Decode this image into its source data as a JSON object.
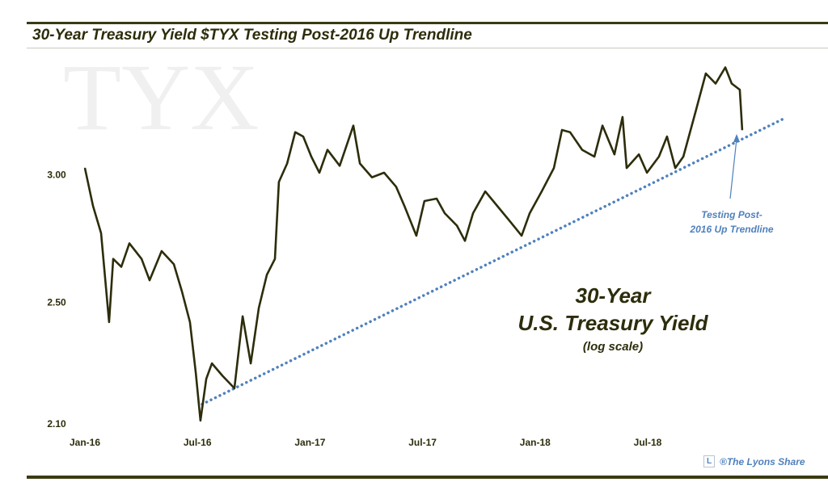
{
  "title": "30-Year Treasury Yield $TYX Testing Post-2016 Up Trendline",
  "watermark": "TYX",
  "credit": "®The Lyons Share",
  "logo_letter": "L",
  "colors": {
    "line": "#2d2d0c",
    "trend": "#4f81bd",
    "rule": "#3b3b14"
  },
  "chart_data": {
    "type": "line",
    "title": "30-Year Treasury Yield $TYX Testing Post-2016 Up Trendline",
    "xlabel": "",
    "ylabel": "",
    "yscale": "log",
    "ylim": [
      2.1,
      3.55
    ],
    "x_unit": "months since Jan-2016",
    "xlim": [
      0,
      37.5
    ],
    "x_ticks": [
      {
        "m": 0,
        "label": "Jan-16"
      },
      {
        "m": 6,
        "label": "Jul-16"
      },
      {
        "m": 12,
        "label": "Jan-17"
      },
      {
        "m": 18,
        "label": "Jul-17"
      },
      {
        "m": 24,
        "label": "Jan-18"
      },
      {
        "m": 30,
        "label": "Jul-18"
      }
    ],
    "y_ticks": [
      {
        "v": 2.1,
        "label": "2.10"
      },
      {
        "v": 2.5,
        "label": "2.50"
      },
      {
        "v": 3.0,
        "label": "3.00"
      }
    ],
    "series": [
      {
        "name": "30-Year U.S. Treasury Yield",
        "x": [
          0,
          0.43,
          0.86,
          1.29,
          1.51,
          1.94,
          2.37,
          3.02,
          3.45,
          4.09,
          4.74,
          5.17,
          5.6,
          5.91,
          6.16,
          6.47,
          6.77,
          7.33,
          7.97,
          8.41,
          8.84,
          9.27,
          9.7,
          10.13,
          10.34,
          10.78,
          11.21,
          11.64,
          12.07,
          12.5,
          12.93,
          13.58,
          14.31,
          14.66,
          15.3,
          15.95,
          16.59,
          17.03,
          17.67,
          18.1,
          18.75,
          19.18,
          19.83,
          20.26,
          20.69,
          21.34,
          21.98,
          22.63,
          23.28,
          23.71,
          24.35,
          25,
          25.43,
          25.86,
          26.51,
          27.16,
          27.59,
          28.23,
          28.66,
          28.88,
          29.53,
          29.96,
          30.6,
          31.03,
          31.47,
          31.9,
          32.54,
          33.1,
          33.62,
          34.14,
          34.48,
          34.91,
          35.04
        ],
        "values": [
          3.03,
          2.87,
          2.76,
          2.43,
          2.66,
          2.63,
          2.72,
          2.66,
          2.58,
          2.69,
          2.64,
          2.54,
          2.43,
          2.26,
          2.11,
          2.24,
          2.29,
          2.25,
          2.21,
          2.45,
          2.29,
          2.48,
          2.6,
          2.66,
          2.97,
          3.05,
          3.19,
          3.17,
          3.08,
          3.01,
          3.11,
          3.04,
          3.22,
          3.05,
          2.99,
          3.01,
          2.95,
          2.87,
          2.75,
          2.89,
          2.9,
          2.84,
          2.79,
          2.73,
          2.84,
          2.93,
          2.87,
          2.81,
          2.75,
          2.84,
          2.93,
          3.03,
          3.2,
          3.19,
          3.11,
          3.08,
          3.22,
          3.09,
          3.26,
          3.03,
          3.09,
          3.01,
          3.08,
          3.17,
          3.03,
          3.08,
          3.28,
          3.47,
          3.42,
          3.5,
          3.42,
          3.39,
          3.2
        ]
      }
    ],
    "trendline": {
      "name": "Post-2016 Up Trendline",
      "style": "dotted",
      "x": [
        6.25,
        37.2
      ],
      "values": [
        2.16,
        3.25
      ]
    },
    "annotations": {
      "label_lines": [
        "30-Year",
        "U.S. Treasury Yield"
      ],
      "scale_note": "(log scale)",
      "trend_note": [
        "Testing Post-",
        "2016 Up Trendline"
      ]
    },
    "grid": false,
    "legend": "none"
  }
}
